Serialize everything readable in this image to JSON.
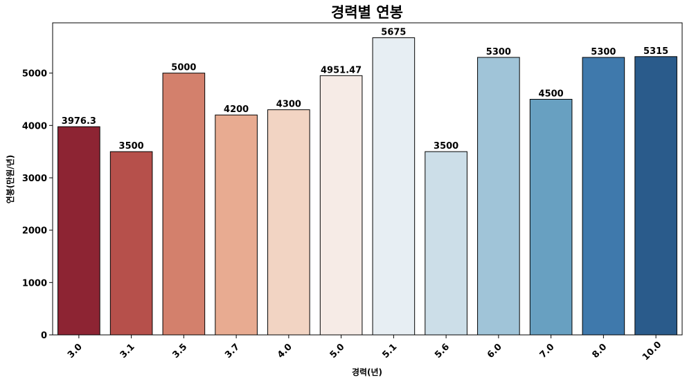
{
  "chart_data": {
    "type": "bar",
    "title": "경력별 연봉",
    "xlabel": "경력(년)",
    "ylabel": "연봉(만원/년)",
    "categories": [
      "3.0",
      "3.1",
      "3.5",
      "3.7",
      "4.0",
      "5.0",
      "5.1",
      "5.6",
      "6.0",
      "7.0",
      "8.0",
      "10.0"
    ],
    "values": [
      3976.3,
      3500,
      5000,
      4200,
      4300,
      4951.47,
      5675,
      3500,
      5300,
      4500,
      5300,
      5315
    ],
    "value_labels": [
      "3976.3",
      "3500",
      "5000",
      "4200",
      "4300",
      "4951.47",
      "5675",
      "3500",
      "5300",
      "4500",
      "5300",
      "5315"
    ],
    "colors": [
      "#8d2433",
      "#b6504b",
      "#d3806c",
      "#e8ab91",
      "#f2d4c3",
      "#f6ebe6",
      "#e7eef3",
      "#ccdee8",
      "#a0c4d8",
      "#68a0c1",
      "#3f79ac",
      "#2a5b8b"
    ],
    "yticks": [
      "0",
      "1000",
      "2000",
      "3000",
      "4000",
      "5000"
    ],
    "ylim": [
      0,
      5960
    ],
    "grid": false,
    "legend": "none"
  }
}
